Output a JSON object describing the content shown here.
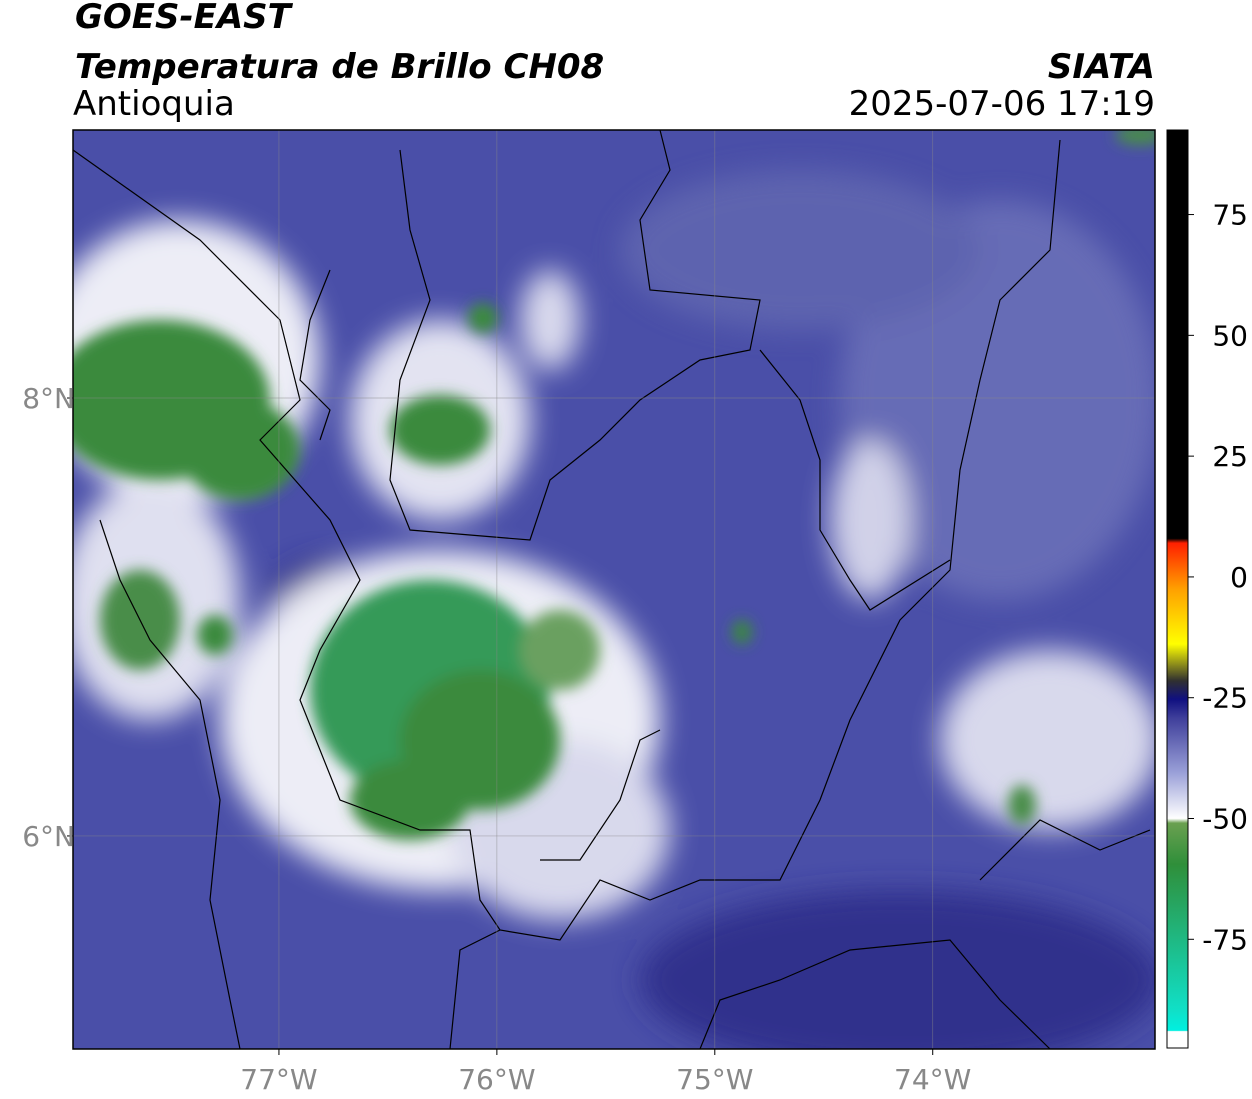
{
  "header": {
    "title": "GOES-EAST",
    "subtitle": "Temperatura de Brillo CH08",
    "region": "Antioquia",
    "source": "SIATA",
    "datetime": "2025-07-06 17:19"
  },
  "map": {
    "xlim": [
      -77.945,
      -72.98
    ],
    "ylim": [
      5.027,
      9.224
    ],
    "xticks": [
      {
        "value": -77,
        "label": "77°W"
      },
      {
        "value": -76,
        "label": "76°W"
      },
      {
        "value": -75,
        "label": "75°W"
      },
      {
        "value": -74,
        "label": "74°W"
      }
    ],
    "yticks": [
      {
        "value": 6,
        "label": "6°N"
      },
      {
        "value": 8,
        "label": "8°N"
      }
    ]
  },
  "colorbar": {
    "lim": [
      -97.5,
      92.5
    ],
    "ticks": [
      -75,
      -50,
      -25,
      0,
      25,
      50,
      75
    ]
  }
}
